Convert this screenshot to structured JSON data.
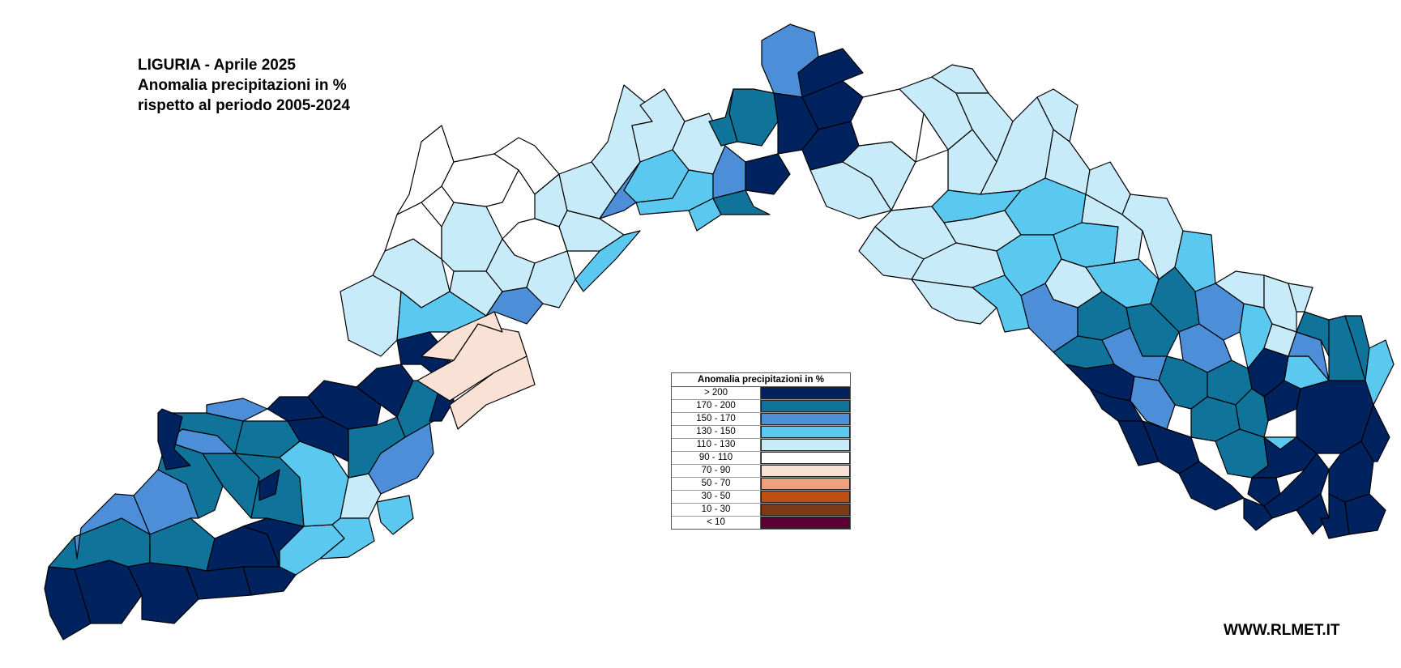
{
  "title_lines": [
    "LIGURIA - Aprile 2025",
    "Anomalia precipitazioni in %",
    "rispetto al periodo 2005-2024"
  ],
  "footer": "WWW.RLMET.IT",
  "legend": {
    "title": "Anomalia precipitazioni in %",
    "classes": [
      {
        "label": "> 200",
        "color": "#00225e"
      },
      {
        "label": "170 - 200",
        "color": "#0f739a"
      },
      {
        "label": "150 - 170",
        "color": "#4c8fd8"
      },
      {
        "label": "130 - 150",
        "color": "#5bc8f0"
      },
      {
        "label": "110 - 130",
        "color": "#c8ebf9"
      },
      {
        "label": "90 - 110",
        "color": "#ffffff"
      },
      {
        "label": "70 - 90",
        "color": "#f9e1d6"
      },
      {
        "label": "50 - 70",
        "color": "#efa07e"
      },
      {
        "label": "30 - 50",
        "color": "#bf5011"
      },
      {
        "label": "10 - 30",
        "color": "#7b3915"
      },
      {
        "label": "< 10",
        "color": "#5c0036"
      }
    ]
  },
  "regions": [
    {
      "cls": 0
    },
    {
      "cls": 0
    },
    {
      "cls": 1
    },
    {
      "cls": 2
    },
    {
      "cls": 0
    },
    {
      "cls": 1
    },
    {
      "cls": 0
    },
    {
      "cls": 2
    },
    {
      "cls": 1
    },
    {
      "cls": 0
    },
    {
      "cls": 0
    },
    {
      "cls": 3
    },
    {
      "cls": 0
    },
    {
      "cls": 1
    },
    {
      "cls": 1
    },
    {
      "cls": 2
    },
    {
      "cls": 1
    },
    {
      "cls": 0
    },
    {
      "cls": 1
    },
    {
      "cls": 3
    },
    {
      "cls": 0
    },
    {
      "cls": 0
    },
    {
      "cls": 2
    },
    {
      "cls": 0
    },
    {
      "cls": 4
    },
    {
      "cls": 3
    },
    {
      "cls": 0
    },
    {
      "cls": 0
    },
    {
      "cls": 1
    },
    {
      "cls": 2
    },
    {
      "cls": 1
    },
    {
      "cls": 0
    },
    {
      "cls": 0
    },
    {
      "cls": 3
    },
    {
      "cls": 6
    },
    {
      "cls": 6
    },
    {
      "cls": 6
    },
    {
      "cls": 4
    },
    {
      "cls": 4
    },
    {
      "cls": 3
    },
    {
      "cls": 5
    },
    {
      "cls": 5
    },
    {
      "cls": 4
    },
    {
      "cls": 4
    },
    {
      "cls": 5
    },
    {
      "cls": 5
    },
    {
      "cls": 4
    },
    {
      "cls": 5
    },
    {
      "cls": 4
    },
    {
      "cls": 2
    },
    {
      "cls": 4
    },
    {
      "cls": 4
    },
    {
      "cls": 4
    },
    {
      "cls": 3
    },
    {
      "cls": 4
    },
    {
      "cls": 4
    },
    {
      "cls": 4
    },
    {
      "cls": 3
    },
    {
      "cls": 2
    },
    {
      "cls": 3
    },
    {
      "cls": 3
    },
    {
      "cls": 2
    },
    {
      "cls": 1
    },
    {
      "cls": 0
    },
    {
      "cls": 2
    },
    {
      "cls": 1
    },
    {
      "cls": 1
    },
    {
      "cls": 0
    },
    {
      "cls": 0
    },
    {
      "cls": 0
    },
    {
      "cls": 0
    },
    {
      "cls": 1
    }
  ]
}
